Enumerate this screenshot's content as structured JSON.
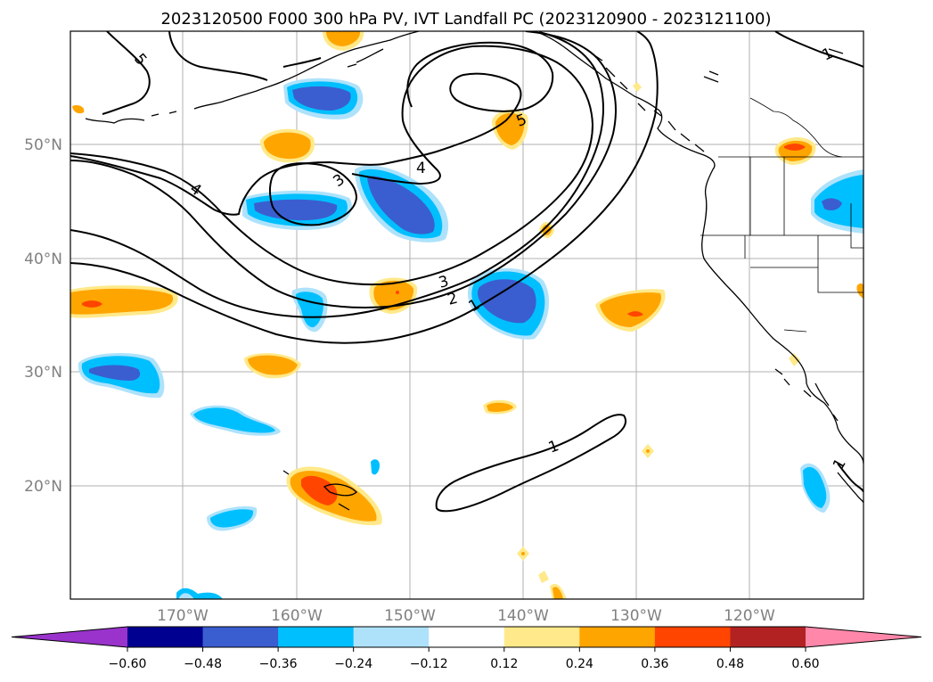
{
  "title": "2023120500 F000 300 hPa PV, IVT Landfall PC (2023120900 - 2023121100)",
  "map": {
    "lat_ticks": [
      "20°N",
      "30°N",
      "40°N",
      "50°N"
    ],
    "lon_ticks": [
      "170°W",
      "160°W",
      "150°W",
      "140°W",
      "130°W",
      "120°W"
    ],
    "contour_labels": [
      "5",
      "4",
      "4",
      "3",
      "3",
      "2",
      "1",
      "5",
      "1",
      "1",
      "1"
    ]
  },
  "colorbar": {
    "ticks": [
      "−0.60",
      "−0.48",
      "−0.36",
      "−0.24",
      "−0.12",
      "0.12",
      "0.24",
      "0.36",
      "0.48",
      "0.60"
    ],
    "colors": [
      "#9933cc",
      "#000090",
      "#3a5ecf",
      "#00bfff",
      "#aee2fb",
      "#ffffff",
      "#ffe98a",
      "#ffa500",
      "#ff4500",
      "#b22222",
      "#ff88aa"
    ]
  },
  "colors": {
    "neg_strong": "#3a5ecf",
    "neg_mid": "#00bfff",
    "neg_weak": "#aee2fb",
    "pos_weak": "#ffe98a",
    "pos_mid": "#ffa500",
    "pos_strong": "#ff4500",
    "grid": "#b0b0b0"
  }
}
